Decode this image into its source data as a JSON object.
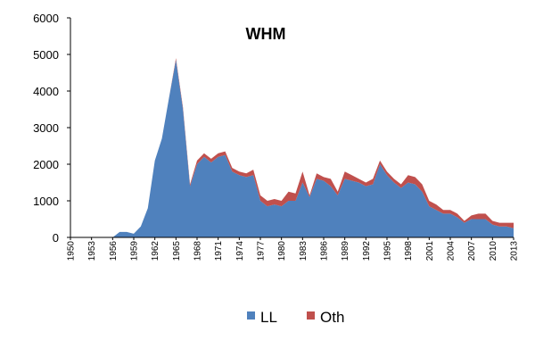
{
  "chart_data": {
    "type": "area",
    "title": "WHM",
    "xlabel": "",
    "ylabel": "",
    "ylim": [
      0,
      6000
    ],
    "yticks": [
      "0",
      "1000",
      "2000",
      "3000",
      "4000",
      "5000",
      "6000"
    ],
    "xtick_labels": [
      "1950",
      "1953",
      "1956",
      "1959",
      "1962",
      "1965",
      "1968",
      "1971",
      "1974",
      "1977",
      "1980",
      "1983",
      "1986",
      "1989",
      "1992",
      "1995",
      "1998",
      "2001",
      "2004",
      "2007",
      "2010",
      "2013"
    ],
    "stacked": true,
    "grid": false,
    "legend_position": "bottom",
    "x": [
      1950,
      1951,
      1952,
      1953,
      1954,
      1955,
      1956,
      1957,
      1958,
      1959,
      1960,
      1961,
      1962,
      1963,
      1964,
      1965,
      1966,
      1967,
      1968,
      1969,
      1970,
      1971,
      1972,
      1973,
      1974,
      1975,
      1976,
      1977,
      1978,
      1979,
      1980,
      1981,
      1982,
      1983,
      1984,
      1985,
      1986,
      1987,
      1988,
      1989,
      1990,
      1991,
      1992,
      1993,
      1994,
      1995,
      1996,
      1997,
      1998,
      1999,
      2000,
      2001,
      2002,
      2003,
      2004,
      2005,
      2006,
      2007,
      2008,
      2009,
      2010,
      2011,
      2012,
      2013
    ],
    "series": [
      {
        "name": "LL",
        "color": "#4f81bd",
        "values": [
          0,
          0,
          0,
          0,
          0,
          0,
          0,
          150,
          150,
          100,
          300,
          800,
          2100,
          2700,
          3800,
          4850,
          3500,
          1400,
          2000,
          2200,
          2050,
          2200,
          2250,
          1800,
          1700,
          1650,
          1700,
          1000,
          850,
          900,
          850,
          1000,
          1000,
          1500,
          1100,
          1600,
          1550,
          1400,
          1150,
          1600,
          1550,
          1500,
          1400,
          1450,
          2000,
          1700,
          1500,
          1350,
          1500,
          1450,
          1250,
          850,
          750,
          650,
          650,
          550,
          400,
          500,
          500,
          500,
          350,
          300,
          300,
          250
        ]
      },
      {
        "name": "Oth",
        "color": "#c0504d",
        "values": [
          0,
          0,
          0,
          0,
          0,
          0,
          0,
          0,
          0,
          0,
          0,
          0,
          0,
          0,
          0,
          50,
          50,
          50,
          100,
          100,
          100,
          100,
          100,
          100,
          100,
          100,
          150,
          150,
          150,
          150,
          150,
          250,
          200,
          300,
          50,
          150,
          100,
          200,
          100,
          200,
          150,
          100,
          100,
          150,
          100,
          100,
          100,
          100,
          200,
          200,
          200,
          150,
          150,
          100,
          100,
          100,
          50,
          100,
          150,
          150,
          100,
          100,
          100,
          150
        ]
      }
    ]
  }
}
